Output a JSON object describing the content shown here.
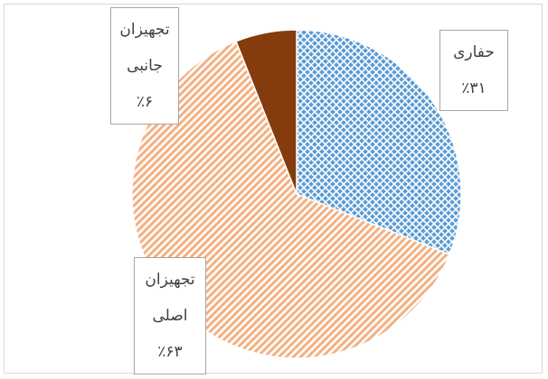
{
  "chart_data": {
    "type": "pie",
    "categories": [
      "حفاری",
      "تجهیزان اصلی",
      "تجهیزان جانبی"
    ],
    "values": [
      31,
      63,
      6
    ],
    "value_labels": [
      "٪۳۱",
      "٪۶۳",
      "٪۶"
    ],
    "colors": [
      "#5b9bd5",
      "#f4b183",
      "#843c0c"
    ],
    "patterns": [
      "crosshatch",
      "diagonal",
      "solid"
    ]
  }
}
